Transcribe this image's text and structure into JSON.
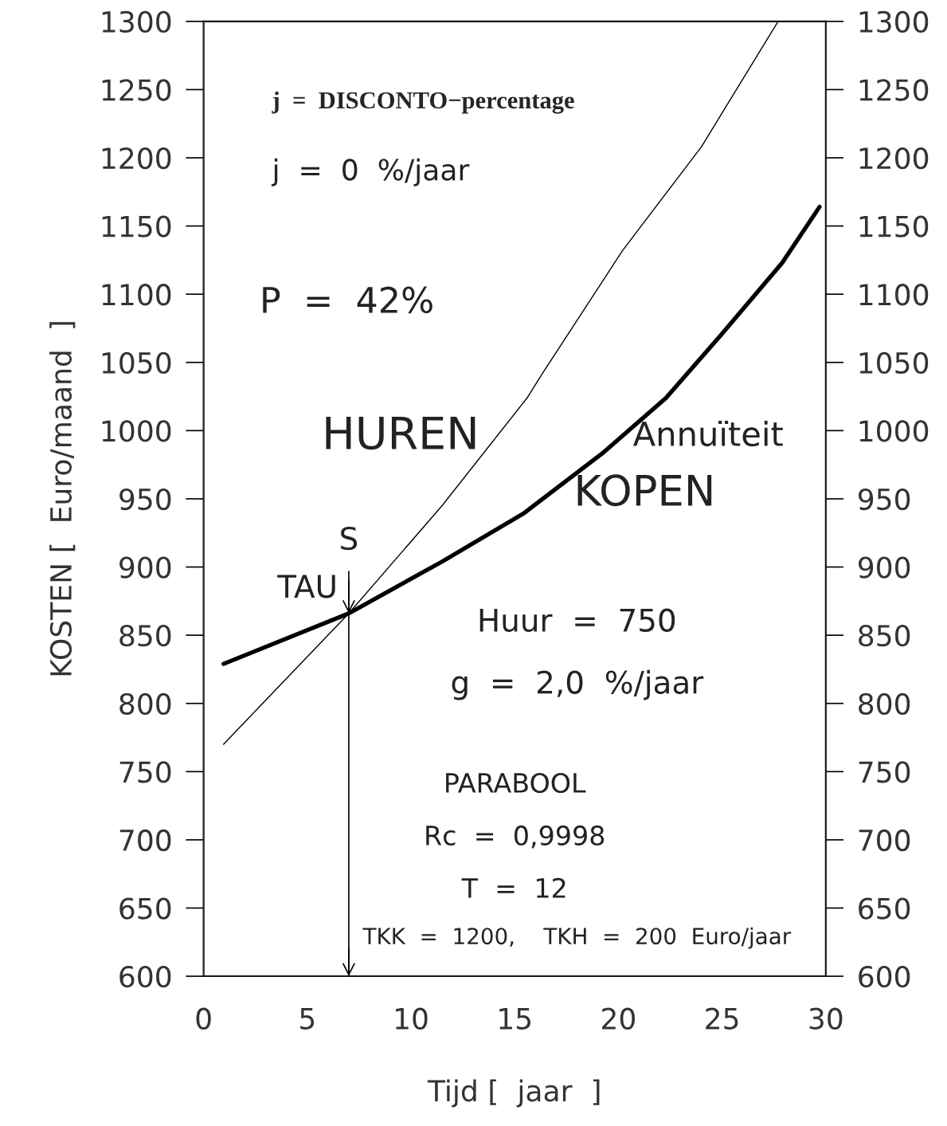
{
  "chart_data": {
    "type": "line",
    "xlabel": "Tijd [  jaar  ]",
    "ylabel": "KOSTEN [  Euro/maand  ]",
    "xlim": [
      0,
      30
    ],
    "ylim": [
      600,
      1300
    ],
    "xticks": [
      0,
      5,
      10,
      15,
      20,
      25,
      30
    ],
    "yticks": [
      600,
      650,
      700,
      750,
      800,
      850,
      900,
      950,
      1000,
      1050,
      1100,
      1150,
      1200,
      1250,
      1300
    ],
    "y2lim": [
      600,
      1300
    ],
    "y2ticks": [
      600,
      650,
      700,
      750,
      800,
      850,
      900,
      950,
      1000,
      1050,
      1100,
      1150,
      1200,
      1250,
      1300
    ],
    "ref_lines": [
      {
        "axis": "x",
        "value": 7.0,
        "label": "S",
        "color": "#000000"
      }
    ],
    "grid": false,
    "marker": "none",
    "line_style": "solid",
    "series": [
      {
        "color": "#000000",
        "x": [
          0.96,
          7.0,
          11.5,
          15.4,
          19.2,
          22.3,
          25.0,
          27.9,
          29.7
        ],
        "values": [
          829,
          866,
          904,
          939,
          983,
          1024,
          1071,
          1123,
          1164
        ]
      },
      {
        "color": "#000000",
        "x": [
          0.96,
          7.0,
          11.5,
          15.6,
          16.3,
          20.2,
          24.0,
          27.7
        ],
        "values": [
          770,
          866,
          945,
          1024,
          1041,
          1132,
          1208,
          1300
        ]
      }
    ],
    "annotations": [
      "j  =  DISCONTO−percentage",
      "j  =  0  %/jaar",
      "P  =  42%",
      "HUREN",
      "Annuïteit",
      "KOPEN",
      "Huur  =  750",
      "g  =  2,0  %/jaar",
      "PARABOOL",
      "Rc  =  0,9998",
      "T  =  12",
      "TKK  =  1200,    TKH  =  200  Euro/jaar",
      {
        "text": "TAU",
        "x": 7.0,
        "y": 866
      }
    ]
  }
}
